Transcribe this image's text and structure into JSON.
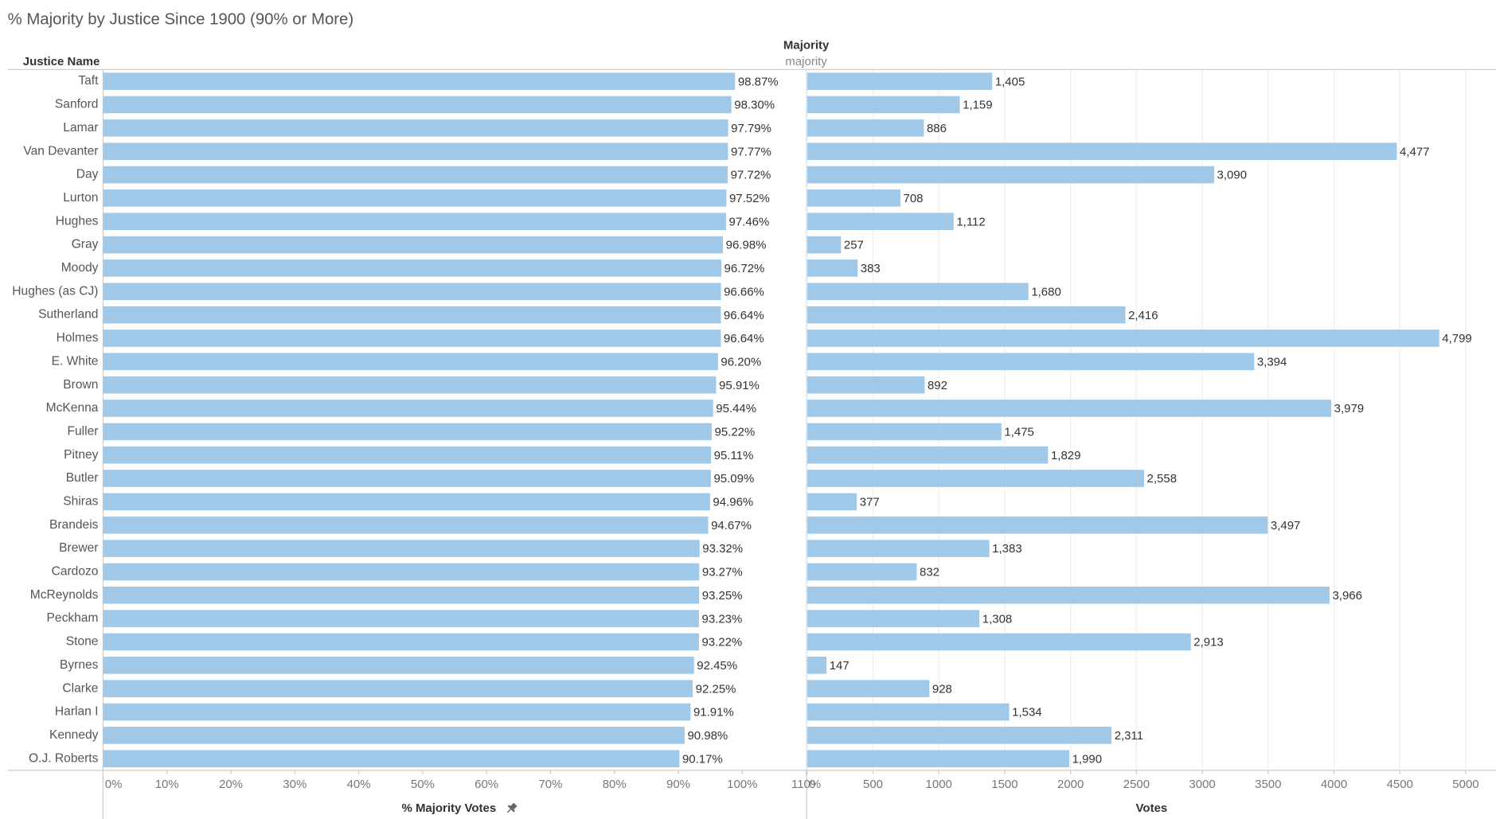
{
  "chart_data": {
    "type": "bar",
    "orientation": "horizontal",
    "title": "% Majority by Justice Since 1900 (90% or More)",
    "category_label": "Justice Name",
    "column_header": "Majority",
    "column_subheader": "majority",
    "categories": [
      "Taft",
      "Sanford",
      "Lamar",
      "Van Devanter",
      "Day",
      "Lurton",
      "Hughes",
      "Gray",
      "Moody",
      "Hughes (as CJ)",
      "Sutherland",
      "Holmes",
      "E. White",
      "Brown",
      "McKenna",
      "Fuller",
      "Pitney",
      "Butler",
      "Shiras",
      "Brandeis",
      "Brewer",
      "Cardozo",
      "McReynolds",
      "Peckham",
      "Stone",
      "Byrnes",
      "Clarke",
      "Harlan I",
      "Kennedy",
      "O.J. Roberts"
    ],
    "series": [
      {
        "name": "% Majority Votes",
        "color": "#a0c8e8",
        "values": [
          98.87,
          98.3,
          97.79,
          97.77,
          97.72,
          97.52,
          97.46,
          96.98,
          96.72,
          96.66,
          96.64,
          96.64,
          96.2,
          95.91,
          95.44,
          95.22,
          95.11,
          95.09,
          94.96,
          94.67,
          93.32,
          93.27,
          93.25,
          93.23,
          93.22,
          92.45,
          92.25,
          91.91,
          90.98,
          90.17
        ],
        "value_labels": [
          "98.87%",
          "98.30%",
          "97.79%",
          "97.77%",
          "97.72%",
          "97.52%",
          "97.46%",
          "96.98%",
          "96.72%",
          "96.66%",
          "96.64%",
          "96.64%",
          "96.20%",
          "95.91%",
          "95.44%",
          "95.22%",
          "95.11%",
          "95.09%",
          "94.96%",
          "94.67%",
          "93.32%",
          "93.27%",
          "93.25%",
          "93.23%",
          "93.22%",
          "92.45%",
          "92.25%",
          "91.91%",
          "90.98%",
          "90.17%"
        ],
        "xlim": [
          0,
          110
        ],
        "xticks": [
          {
            "value": 0,
            "label": "0%"
          },
          {
            "value": 10,
            "label": "10%"
          },
          {
            "value": 20,
            "label": "20%"
          },
          {
            "value": 30,
            "label": "30%"
          },
          {
            "value": 40,
            "label": "40%"
          },
          {
            "value": 50,
            "label": "50%"
          },
          {
            "value": 60,
            "label": "60%"
          },
          {
            "value": 70,
            "label": "70%"
          },
          {
            "value": 80,
            "label": "80%"
          },
          {
            "value": 90,
            "label": "90%"
          },
          {
            "value": 100,
            "label": "100%"
          },
          {
            "value": 110,
            "label": "110%"
          }
        ],
        "grid": false
      },
      {
        "name": "Votes",
        "color": "#a0c8e8",
        "values": [
          1405,
          1159,
          886,
          4477,
          3090,
          708,
          1112,
          257,
          383,
          1680,
          2416,
          4799,
          3394,
          892,
          3979,
          1475,
          1829,
          2558,
          377,
          3497,
          1383,
          832,
          3966,
          1308,
          2913,
          147,
          928,
          1534,
          2311,
          1990
        ],
        "value_labels": [
          "1,405",
          "1,159",
          "886",
          "4,477",
          "3,090",
          "708",
          "1,112",
          "257",
          "383",
          "1,680",
          "2,416",
          "4,799",
          "3,394",
          "892",
          "3,979",
          "1,475",
          "1,829",
          "2,558",
          "377",
          "3,497",
          "1,383",
          "832",
          "3,966",
          "1,308",
          "2,913",
          "147",
          "928",
          "1,534",
          "2,311",
          "1,990"
        ],
        "xlim": [
          0,
          5230
        ],
        "xticks": [
          0,
          500,
          1000,
          1500,
          2000,
          2500,
          3000,
          3500,
          4000,
          4500,
          5000
        ],
        "grid": true
      }
    ]
  }
}
